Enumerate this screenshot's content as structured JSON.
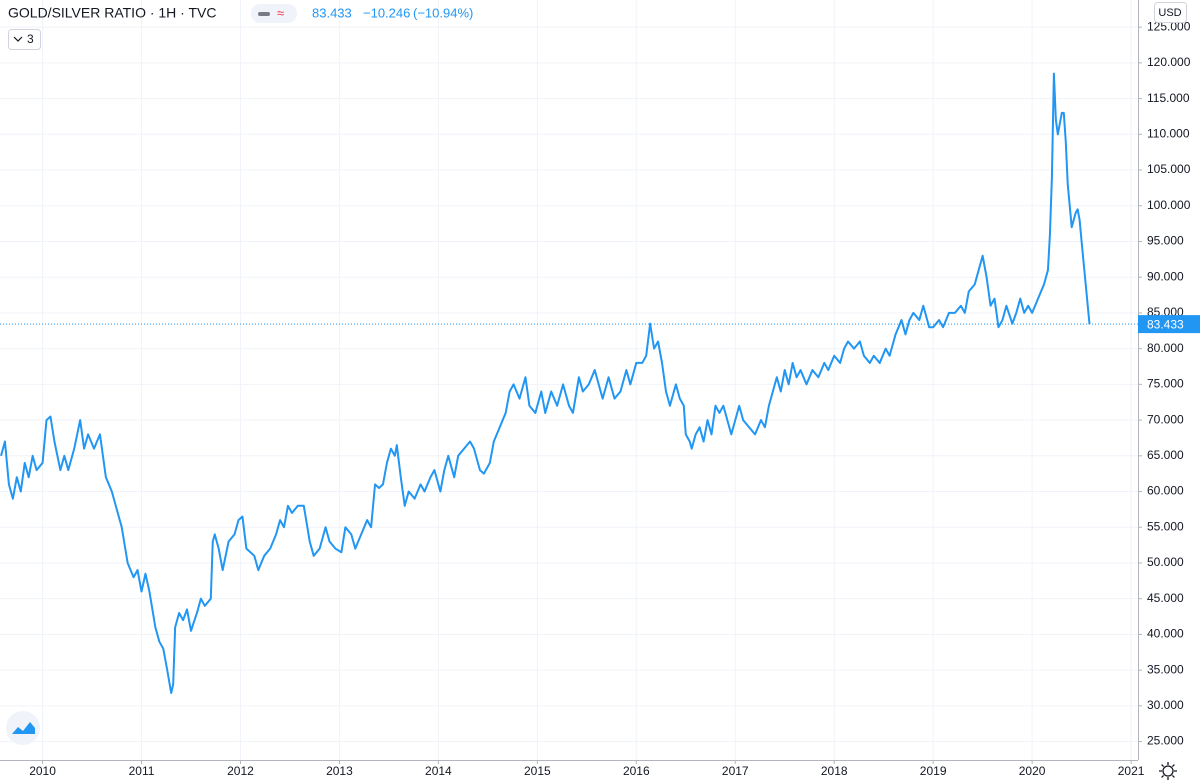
{
  "chart_data": {
    "type": "line",
    "title": "GOLD/SILVER RATIO · 1H · TVC",
    "last_price": 83.433,
    "change": "−10.246",
    "change_percent": "(−10.94%)",
    "indicator_count": "3",
    "currency": "USD",
    "color": "#2196f3",
    "grid": true,
    "xlim": [
      2009.57,
      2021.07
    ],
    "ylim": [
      22.7,
      128.8
    ],
    "xticks": [
      2010,
      2011,
      2012,
      2013,
      2014,
      2015,
      2016,
      2017,
      2018,
      2019,
      2020,
      2021
    ],
    "yticks": [
      {
        "value": 25,
        "label": "25.000"
      },
      {
        "value": 30,
        "label": "30.000"
      },
      {
        "value": 35,
        "label": "35.000"
      },
      {
        "value": 40,
        "label": "40.000"
      },
      {
        "value": 45,
        "label": "45.000"
      },
      {
        "value": 50,
        "label": "50.000"
      },
      {
        "value": 55,
        "label": "55.000"
      },
      {
        "value": 60,
        "label": "60.000"
      },
      {
        "value": 65,
        "label": "65.000"
      },
      {
        "value": 70,
        "label": "70.000"
      },
      {
        "value": 75,
        "label": "75.000"
      },
      {
        "value": 80,
        "label": "80.000"
      },
      {
        "value": 85,
        "label": "85.000"
      },
      {
        "value": 90,
        "label": "90.000"
      },
      {
        "value": 95,
        "label": "95.000"
      },
      {
        "value": 100,
        "label": "100.000"
      },
      {
        "value": 105,
        "label": "105.000"
      },
      {
        "value": 110,
        "label": "110.000"
      },
      {
        "value": 115,
        "label": "115.000"
      },
      {
        "value": 120,
        "label": "120.000"
      },
      {
        "value": 125,
        "label": "125.000"
      }
    ],
    "x": [
      2009.58,
      2009.62,
      2009.66,
      2009.7,
      2009.74,
      2009.78,
      2009.82,
      2009.86,
      2009.9,
      2009.94,
      2010,
      2010.04,
      2010.08,
      2010.12,
      2010.18,
      2010.22,
      2010.26,
      2010.32,
      2010.38,
      2010.42,
      2010.46,
      2010.52,
      2010.58,
      2010.64,
      2010.7,
      2010.76,
      2010.8,
      2010.86,
      2010.92,
      2010.96,
      2011,
      2011.04,
      2011.08,
      2011.14,
      2011.18,
      2011.22,
      2011.26,
      2011.3,
      2011.32,
      2011.34,
      2011.38,
      2011.42,
      2011.46,
      2011.5,
      2011.56,
      2011.6,
      2011.64,
      2011.7,
      2011.72,
      2011.74,
      2011.78,
      2011.82,
      2011.88,
      2011.94,
      2011.98,
      2012.02,
      2012.06,
      2012.14,
      2012.18,
      2012.24,
      2012.3,
      2012.36,
      2012.4,
      2012.44,
      2012.48,
      2012.52,
      2012.58,
      2012.64,
      2012.7,
      2012.74,
      2012.8,
      2012.86,
      2012.9,
      2012.96,
      2013.02,
      2013.06,
      2013.12,
      2013.16,
      2013.22,
      2013.28,
      2013.32,
      2013.36,
      2013.4,
      2013.44,
      2013.48,
      2013.52,
      2013.56,
      2013.58,
      2013.62,
      2013.66,
      2013.7,
      2013.76,
      2013.82,
      2013.86,
      2013.92,
      2013.96,
      2014.02,
      2014.06,
      2014.1,
      2014.16,
      2014.2,
      2014.26,
      2014.32,
      2014.36,
      2014.42,
      2014.46,
      2014.52,
      2014.56,
      2014.62,
      2014.68,
      2014.72,
      2014.76,
      2014.82,
      2014.88,
      2014.92,
      2014.98,
      2015.04,
      2015.08,
      2015.14,
      2015.2,
      2015.26,
      2015.32,
      2015.36,
      2015.42,
      2015.46,
      2015.52,
      2015.58,
      2015.62,
      2015.66,
      2015.72,
      2015.78,
      2015.84,
      2015.9,
      2015.94,
      2016,
      2016.06,
      2016.1,
      2016.14,
      2016.18,
      2016.22,
      2016.26,
      2016.3,
      2016.34,
      2016.4,
      2016.44,
      2016.48,
      2016.5,
      2016.54,
      2016.56,
      2016.6,
      2016.64,
      2016.68,
      2016.72,
      2016.76,
      2016.8,
      2016.84,
      2016.88,
      2016.92,
      2016.96,
      2017,
      2017.04,
      2017.08,
      2017.14,
      2017.2,
      2017.26,
      2017.3,
      2017.34,
      2017.38,
      2017.42,
      2017.46,
      2017.5,
      2017.54,
      2017.58,
      2017.62,
      2017.66,
      2017.72,
      2017.78,
      2017.84,
      2017.9,
      2017.94,
      2018,
      2018.06,
      2018.1,
      2018.14,
      2018.2,
      2018.26,
      2018.3,
      2018.36,
      2018.4,
      2018.46,
      2018.52,
      2018.56,
      2018.62,
      2018.68,
      2018.72,
      2018.76,
      2018.8,
      2018.86,
      2018.9,
      2018.96,
      2019,
      2019.06,
      2019.1,
      2019.16,
      2019.22,
      2019.28,
      2019.32,
      2019.36,
      2019.42,
      2019.46,
      2019.5,
      2019.54,
      2019.58,
      2019.62,
      2019.66,
      2019.7,
      2019.74,
      2019.8,
      2019.84,
      2019.88,
      2019.92,
      2019.96,
      2020,
      2020.06,
      2020.12,
      2020.16,
      2020.18,
      2020.2,
      2020.22,
      2020.24,
      2020.26,
      2020.3,
      2020.32,
      2020.34,
      2020.36,
      2020.4,
      2020.44,
      2020.46,
      2020.48,
      2020.5,
      2020.58
    ],
    "values": [
      65,
      67,
      61,
      59,
      62,
      60,
      64,
      62,
      65,
      63,
      64,
      70,
      70.5,
      67,
      63,
      65,
      63,
      66,
      70,
      66,
      68,
      66,
      68,
      62,
      60,
      57,
      55,
      50,
      48,
      49,
      46,
      48.5,
      46,
      41,
      39,
      38,
      35,
      31.8,
      33,
      41,
      43,
      42,
      43.5,
      40.5,
      43,
      45,
      44,
      45,
      53,
      54,
      52,
      49,
      53,
      54,
      56,
      56.5,
      52,
      51,
      49,
      51,
      52,
      54,
      56,
      55,
      58,
      57,
      58,
      58,
      53,
      51,
      52,
      55,
      53,
      52,
      51.5,
      55,
      54,
      52,
      54,
      56,
      55,
      61,
      60.5,
      61,
      64,
      66,
      65,
      66.5,
      62,
      58,
      60,
      59,
      61,
      60,
      62,
      63,
      60,
      63,
      65,
      62,
      65,
      66,
      67,
      66,
      63,
      62.5,
      64,
      67,
      69,
      71,
      74,
      75,
      73,
      76,
      72,
      71,
      74,
      71,
      74,
      72,
      75,
      72,
      71,
      76,
      74,
      75,
      77,
      75,
      73,
      76,
      73,
      74,
      77,
      75,
      78,
      78,
      79,
      83.5,
      80,
      81,
      78,
      74,
      72,
      75,
      73,
      72,
      68,
      67,
      66,
      68,
      69,
      67,
      70,
      68,
      72,
      71,
      72,
      70,
      68,
      70,
      72,
      70,
      69,
      68,
      70,
      69,
      72,
      74,
      76,
      74,
      77,
      75,
      78,
      76,
      77,
      75,
      77,
      76,
      78,
      77,
      79,
      78,
      80,
      81,
      80,
      81,
      79,
      78,
      79,
      78,
      80,
      79,
      82,
      84,
      82,
      84,
      85,
      84,
      86,
      83,
      83,
      84,
      83,
      85,
      85,
      86,
      85,
      88,
      89,
      91,
      93,
      90,
      86,
      87,
      83,
      84,
      86,
      83.5,
      85,
      87,
      85,
      86,
      85,
      87,
      89,
      91,
      96,
      104,
      118.5,
      112,
      110,
      113,
      113,
      109,
      103,
      97,
      99,
      99.5,
      98,
      95,
      83.433
    ]
  }
}
